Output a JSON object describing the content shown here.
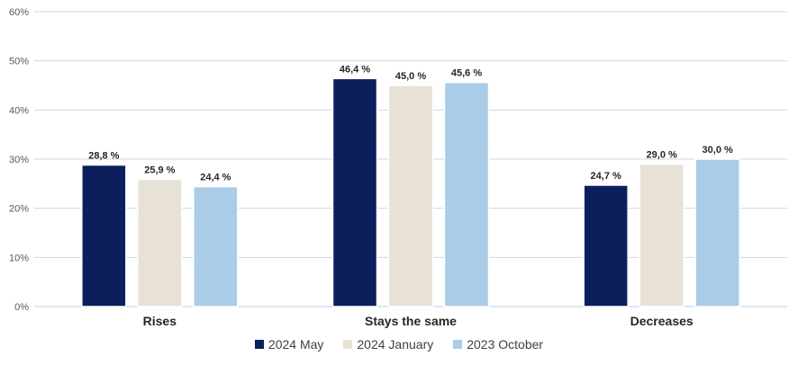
{
  "chart_data": {
    "type": "bar",
    "categories": [
      "Rises",
      "Stays the same",
      "Decreases"
    ],
    "series": [
      {
        "name": "2024 May",
        "values": [
          28.8,
          46.4,
          24.7
        ],
        "labels": [
          "28,8 %",
          "46,4 %",
          "24,7 %"
        ],
        "color": "#0b1f5c"
      },
      {
        "name": "2024 January",
        "values": [
          25.9,
          45.0,
          29.0
        ],
        "labels": [
          "25,9 %",
          "45,0 %",
          "29,0 %"
        ],
        "color": "#e8e2d6"
      },
      {
        "name": "2023 October",
        "values": [
          24.4,
          45.6,
          30.0
        ],
        "labels": [
          "24,4 %",
          "45,6 %",
          "30,0 %"
        ],
        "color": "#a9cce9"
      }
    ],
    "y_ticks": [
      "0%",
      "10%",
      "20%",
      "30%",
      "40%",
      "50%",
      "60%"
    ],
    "ylim": [
      0,
      60
    ],
    "grid": true,
    "legend_position": "bottom",
    "gridline_color": "#c6d9ee"
  }
}
